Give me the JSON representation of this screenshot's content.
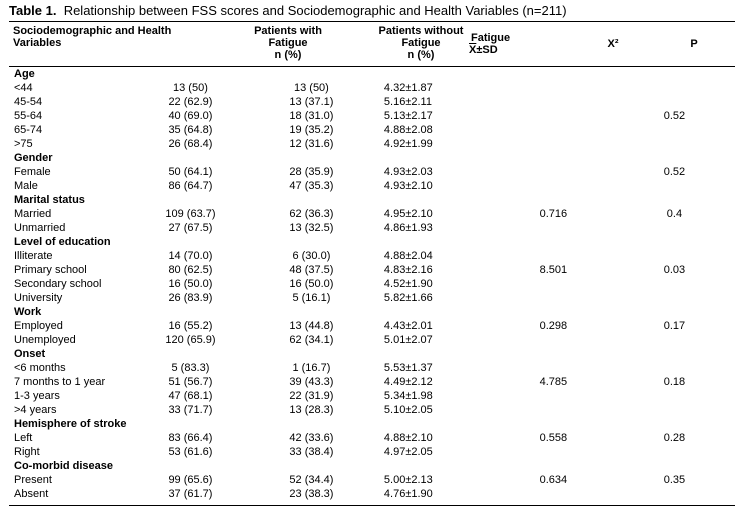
{
  "caption": {
    "label": "Table 1.",
    "text": "Relationship between FSS scores and Sociodemographic and Health Variables (n=211)"
  },
  "header": {
    "col0": {
      "line1": "Sociodemographic and Health",
      "line2": "Variables"
    },
    "col1": {
      "line1": "Patients with",
      "line2": "Fatigue",
      "line3": "n (%)"
    },
    "col2": {
      "line1": "Patients without",
      "line2": "Fatigue",
      "line3": "n (%)"
    },
    "col3": {
      "line1": "Fatigue",
      "xbar": "X",
      "line2": "±SD"
    },
    "col4": "X²",
    "col5": "P"
  },
  "rows": [
    {
      "type": "group",
      "label": "Age"
    },
    {
      "label": "<44",
      "with": "13 (50)",
      "without": "13 (50)",
      "mean": "4.32±1.87",
      "chi": "",
      "p": ""
    },
    {
      "label": "45-54",
      "with": "22 (62.9)",
      "without": "13 (37.1)",
      "mean": "5.16±2.11",
      "chi": "",
      "p": ""
    },
    {
      "label": "55-64",
      "with": "40 (69.0)",
      "without": "18 (31.0)",
      "mean": "5.13±2.17",
      "chi": "",
      "p": "0.52"
    },
    {
      "label": "65-74",
      "with": "35 (64.8)",
      "without": "19 (35.2)",
      "mean": "4.88±2.08",
      "chi": "",
      "p": ""
    },
    {
      "label": ">75",
      "with": "26 (68.4)",
      "without": "12 (31.6)",
      "mean": "4.92±1.99",
      "chi": "",
      "p": ""
    },
    {
      "type": "group",
      "label": "Gender"
    },
    {
      "label": "Female",
      "with": "50 (64.1)",
      "without": "28 (35.9)",
      "mean": "4.93±2.03",
      "chi": "",
      "p": "0.52"
    },
    {
      "label": "Male",
      "with": "86 (64.7)",
      "without": "47 (35.3)",
      "mean": "4.93±2.10",
      "chi": "",
      "p": ""
    },
    {
      "type": "group",
      "label": "Marital status"
    },
    {
      "label": "Married",
      "with": "109 (63.7)",
      "without": "62 (36.3)",
      "mean": "4.95±2.10",
      "chi": "0.716",
      "p": "0.4"
    },
    {
      "label": "Unmarried",
      "with": "27 (67.5)",
      "without": "13 (32.5)",
      "mean": "4.86±1.93",
      "chi": "",
      "p": ""
    },
    {
      "type": "group",
      "label": "Level of education"
    },
    {
      "label": "Illiterate",
      "with": "14 (70.0)",
      "without": "6 (30.0)",
      "mean": "4.88±2.04",
      "chi": "",
      "p": ""
    },
    {
      "label": "Primary school",
      "with": "80 (62.5)",
      "without": "48 (37.5)",
      "mean": "4.83±2.16",
      "chi": "8.501",
      "p": "0.03"
    },
    {
      "label": "Secondary school",
      "with": "16 (50.0)",
      "without": "16 (50.0)",
      "mean": "4.52±1.90",
      "chi": "",
      "p": ""
    },
    {
      "label": "University",
      "with": "26 (83.9)",
      "without": "5 (16.1)",
      "mean": "5.82±1.66",
      "chi": "",
      "p": ""
    },
    {
      "type": "group",
      "label": "Work"
    },
    {
      "label": "Employed",
      "with": "16 (55.2)",
      "without": "13 (44.8)",
      "mean": "4.43±2.01",
      "chi": "0.298",
      "p": "0.17"
    },
    {
      "label": "Unemployed",
      "with": "120 (65.9)",
      "without": "62 (34.1)",
      "mean": "5.01±2.07",
      "chi": "",
      "p": ""
    },
    {
      "type": "group",
      "label": "Onset"
    },
    {
      "label": "<6 months",
      "with": "5 (83.3)",
      "without": "1 (16.7)",
      "mean": "5.53±1.37",
      "chi": "",
      "p": ""
    },
    {
      "label": "7 months to 1 year",
      "with": "51 (56.7)",
      "without": "39 (43.3)",
      "mean": "4.49±2.12",
      "chi": "4.785",
      "p": "0.18"
    },
    {
      "label": "1-3 years",
      "with": "47 (68.1)",
      "without": "22 (31.9)",
      "mean": "5.34±1.98",
      "chi": "",
      "p": ""
    },
    {
      "label": ">4 years",
      "with": "33 (71.7)",
      "without": "13 (28.3)",
      "mean": "5.10±2.05",
      "chi": "",
      "p": ""
    },
    {
      "type": "group",
      "label": "Hemisphere of stroke"
    },
    {
      "label": "Left",
      "with": "83 (66.4)",
      "without": "42 (33.6)",
      "mean": "4.88±2.10",
      "chi": "0.558",
      "p": "0.28"
    },
    {
      "label": "Right",
      "with": "53 (61.6)",
      "without": "33 (38.4)",
      "mean": "4.97±2.05",
      "chi": "",
      "p": ""
    },
    {
      "type": "group",
      "label": "Co-morbid disease"
    },
    {
      "label": "Present",
      "with": "99 (65.6)",
      "without": "52 (34.4)",
      "mean": "5.00±2.13",
      "chi": "0.634",
      "p": "0.35"
    },
    {
      "label": "Absent",
      "with": "37 (61.7)",
      "without": "23 (38.3)",
      "mean": "4.76±1.90",
      "chi": "",
      "p": ""
    }
  ]
}
